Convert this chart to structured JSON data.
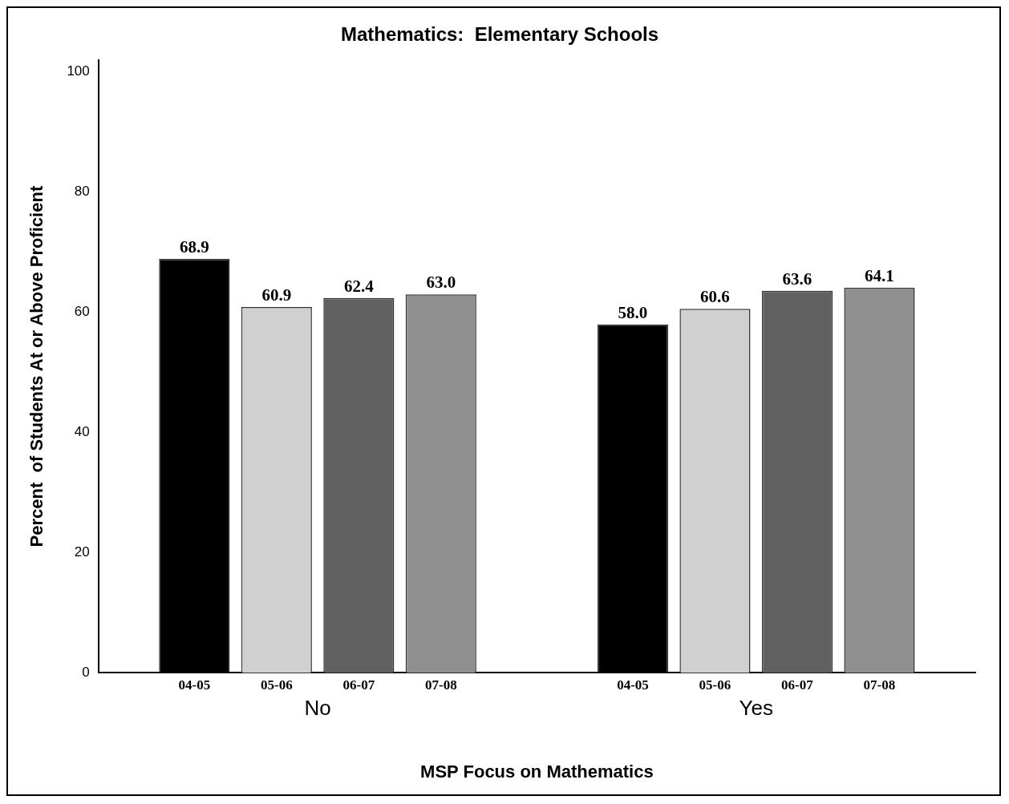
{
  "chart_data": {
    "type": "bar",
    "title": "Mathematics:  Elementary Schools",
    "xlabel": "MSP Focus on Mathematics",
    "ylabel": "Percent  of Students At or Above Proficient",
    "categories": [
      "No",
      "Yes"
    ],
    "series": [
      {
        "name": "04-05",
        "color": "#000000",
        "values": [
          68.9,
          58.0
        ],
        "value_labels": [
          "68.9",
          "58.0"
        ]
      },
      {
        "name": "05-06",
        "color": "#d0d0d0",
        "values": [
          60.9,
          60.6
        ],
        "value_labels": [
          "60.9",
          "60.6"
        ]
      },
      {
        "name": "06-07",
        "color": "#606060",
        "values": [
          62.4,
          63.6
        ],
        "value_labels": [
          "62.4",
          "63.6"
        ]
      },
      {
        "name": "07-08",
        "color": "#909090",
        "values": [
          63.0,
          64.1
        ],
        "value_labels": [
          "63.0",
          "64.1"
        ]
      }
    ],
    "ylim": [
      0,
      102
    ],
    "yticks": [
      0,
      20,
      40,
      60,
      80,
      100
    ],
    "grid": false,
    "legend": false
  }
}
